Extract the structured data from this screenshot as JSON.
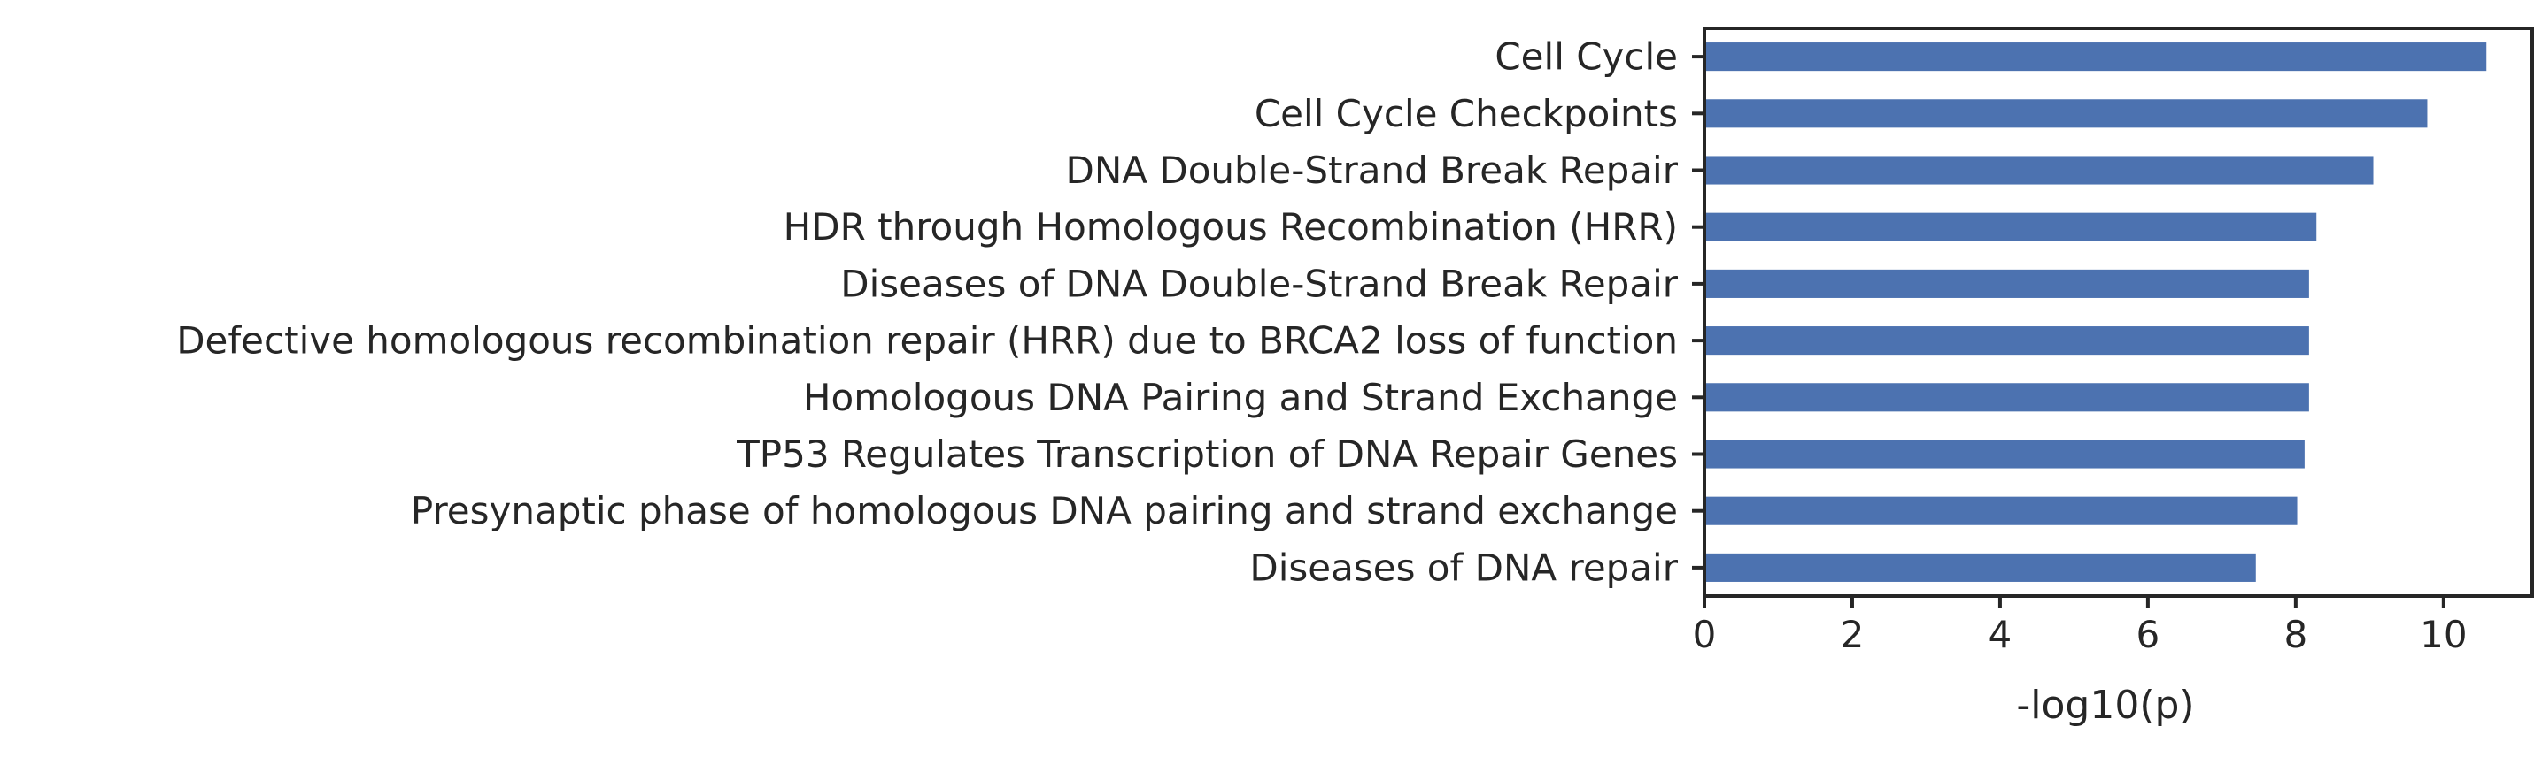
{
  "chart_data": {
    "type": "bar",
    "orientation": "horizontal",
    "categories": [
      "Cell Cycle",
      "Cell Cycle Checkpoints",
      "DNA Double-Strand Break Repair",
      "HDR through Homologous Recombination (HRR)",
      "Diseases of DNA Double-Strand Break Repair",
      "Defective homologous recombination repair (HRR) due to BRCA2 loss of function",
      "Homologous DNA Pairing and Strand Exchange",
      "TP53 Regulates Transcription of DNA Repair Genes",
      "Presynaptic phase of homologous DNA pairing and strand exchange",
      "Diseases of DNA repair"
    ],
    "values": [
      10.58,
      9.78,
      9.05,
      8.28,
      8.18,
      8.18,
      8.18,
      8.12,
      8.02,
      7.46
    ],
    "xlabel": "-log10(p)",
    "ylabel": "",
    "xlim": [
      0,
      11.2
    ],
    "xticks": [
      "0",
      "2",
      "4",
      "6",
      "8",
      "10"
    ],
    "bar_color": "#4c72b0",
    "grid": false,
    "legend": "none"
  }
}
